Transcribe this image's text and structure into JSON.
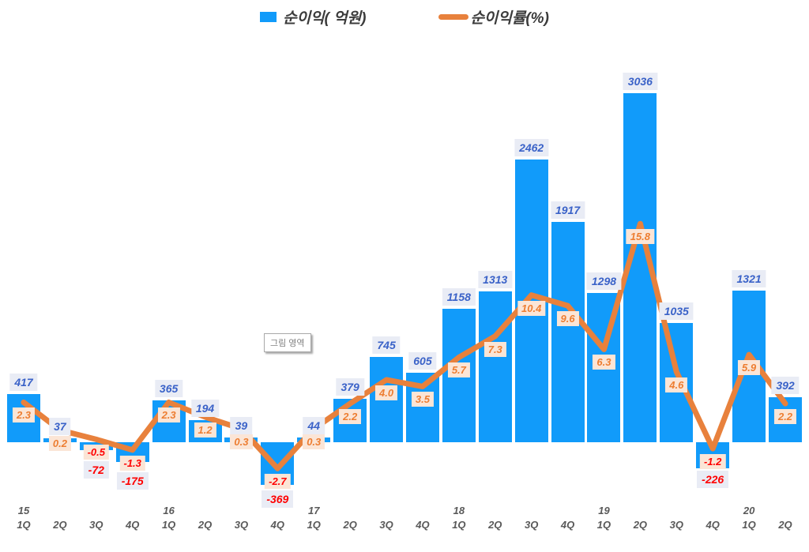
{
  "legend": {
    "bar_label": "순이익( 억원)",
    "line_label": "순이익률(%)"
  },
  "tooltip_text": "그림 영역",
  "colors": {
    "bar": "#119BFA",
    "line": "#E8813C",
    "bar_label_text": "#3A62C8",
    "bar_label_bg": "#E9ECF5",
    "margin_label_text": "#ED7D31",
    "margin_label_bg": "#FBE5D6",
    "negative_text": "#FF0000",
    "axis_text": "#595959",
    "legend_text": "#3B3B3B"
  },
  "chart_data": {
    "type": "bar+line combo",
    "title": "",
    "legend_position": "top",
    "gridlines": false,
    "background": "#FFFFFF",
    "categories": [
      {
        "quarter": "1Q",
        "year": "15"
      },
      {
        "quarter": "2Q"
      },
      {
        "quarter": "3Q"
      },
      {
        "quarter": "4Q"
      },
      {
        "quarter": "1Q",
        "year": "16"
      },
      {
        "quarter": "2Q"
      },
      {
        "quarter": "3Q"
      },
      {
        "quarter": "4Q"
      },
      {
        "quarter": "1Q",
        "year": "17"
      },
      {
        "quarter": "2Q"
      },
      {
        "quarter": "3Q"
      },
      {
        "quarter": "4Q"
      },
      {
        "quarter": "1Q",
        "year": "18"
      },
      {
        "quarter": "2Q"
      },
      {
        "quarter": "3Q"
      },
      {
        "quarter": "4Q"
      },
      {
        "quarter": "1Q",
        "year": "19"
      },
      {
        "quarter": "2Q"
      },
      {
        "quarter": "3Q"
      },
      {
        "quarter": "4Q"
      },
      {
        "quarter": "1Q",
        "year": "20"
      },
      {
        "quarter": "2Q"
      }
    ],
    "series": [
      {
        "name": "순이익( 억원)",
        "type": "bar",
        "values": [
          417,
          37,
          -72,
          -175,
          365,
          194,
          39,
          -369,
          44,
          379,
          745,
          605,
          1158,
          1313,
          2462,
          1917,
          1298,
          3036,
          1035,
          -226,
          1321,
          392
        ]
      },
      {
        "name": "순이익률(%)",
        "type": "line",
        "values": [
          2.3,
          0.2,
          -0.5,
          -1.3,
          2.3,
          1.2,
          0.3,
          -2.7,
          0.3,
          2.2,
          4.0,
          3.5,
          5.7,
          7.3,
          10.4,
          9.6,
          6.3,
          15.8,
          4.6,
          -1.2,
          5.9,
          2.2
        ],
        "value_labels": [
          "2.3",
          "0.2",
          "-0.5",
          "-1.3",
          "2.3",
          "1.2",
          "0.3",
          "-2.7",
          "0.3",
          "2.2",
          "4.0",
          "3.5",
          "5.7",
          "7.3",
          "10.4",
          "9.6",
          "6.3",
          "15.8",
          "4.6",
          "-1.2",
          "5.9",
          "2.2"
        ]
      }
    ]
  }
}
